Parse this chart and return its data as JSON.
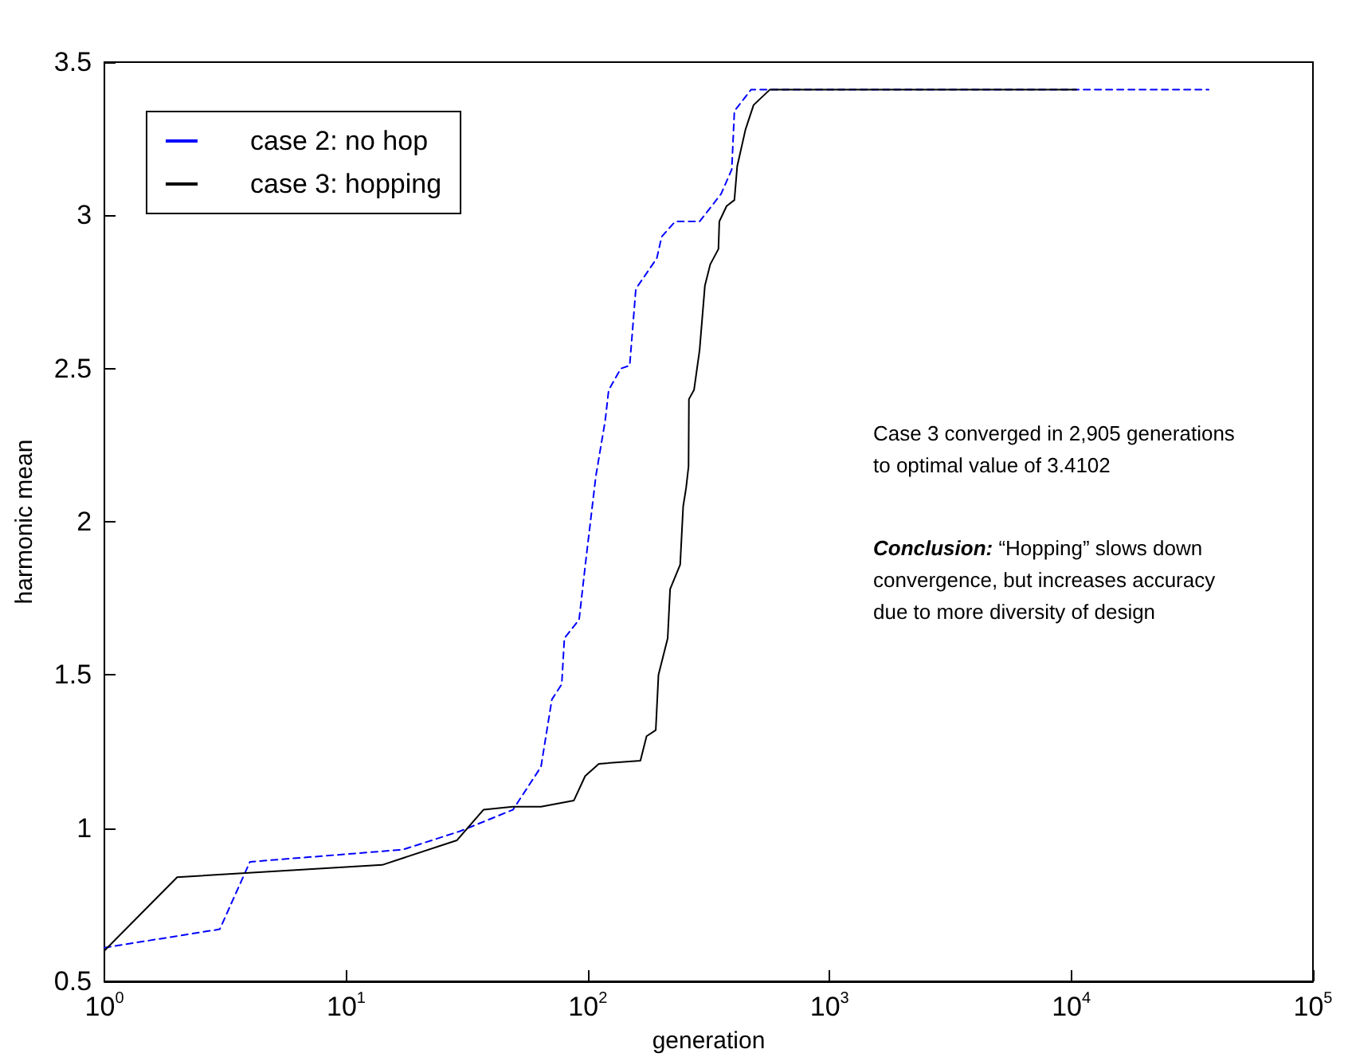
{
  "chart_data": {
    "type": "line",
    "xlabel": "generation",
    "ylabel": "harmonic mean",
    "log": "x",
    "xlim": [
      1,
      100000
    ],
    "xticks": [
      {
        "value": 1,
        "label": "10$^{0}$"
      },
      {
        "value": 10,
        "label": "10$^{1}$"
      },
      {
        "value": 100,
        "label": "10$^{2}$"
      },
      {
        "value": 1000,
        "label": "10$^{3}$"
      },
      {
        "value": 10000,
        "label": "10$^{4}$"
      },
      {
        "value": 100000,
        "label": "10$^{5}$"
      }
    ],
    "ylim": [
      0.5,
      3.5
    ],
    "yticks": [
      0.5,
      1,
      1.5,
      2,
      2.5,
      3,
      3.5
    ],
    "grid": false,
    "legend": "top left",
    "marker": "none",
    "series": [
      {
        "name": "case 2: no hop",
        "color": "#0000ff",
        "line_style": "dashed",
        "x": [
          1,
          3,
          4,
          17.2,
          29.6,
          49,
          64,
          71,
          78,
          80,
          92,
          98,
          108,
          118,
          122,
          137,
          149,
          158,
          193,
          202,
          230,
          290,
          356,
          394,
          404,
          473,
          37000
        ],
        "values": [
          0.61,
          0.67,
          0.89,
          0.93,
          0.99,
          1.06,
          1.2,
          1.42,
          1.47,
          1.62,
          1.68,
          1.87,
          2.15,
          2.33,
          2.43,
          2.5,
          2.51,
          2.76,
          2.86,
          2.93,
          2.98,
          2.98,
          3.07,
          3.15,
          3.34,
          3.41,
          3.41
        ]
      },
      {
        "name": "case 3: hopping",
        "color": "#000000",
        "line_style": "solid",
        "x": [
          1,
          2,
          14.1,
          28.7,
          37,
          49,
          64,
          87.5,
          97.5,
          111,
          165,
          175,
          191,
          196,
          214,
          219,
          241,
          248,
          255,
          261,
          262,
          275,
          290,
          305,
          321,
          347,
          350,
          375,
          404,
          415,
          449,
          485,
          566,
          10500
        ],
        "values": [
          0.6,
          0.84,
          0.88,
          0.96,
          1.06,
          1.07,
          1.07,
          1.09,
          1.17,
          1.21,
          1.22,
          1.3,
          1.32,
          1.5,
          1.62,
          1.78,
          1.86,
          2.05,
          2.11,
          2.18,
          2.4,
          2.43,
          2.56,
          2.77,
          2.84,
          2.89,
          2.98,
          3.03,
          3.05,
          3.16,
          3.28,
          3.36,
          3.41,
          3.41
        ]
      }
    ],
    "annotations": [
      "Case 3 converged in 2,905 generations to optimal value of 3.4102",
      "Conclusion: “Hopping” slows down convergence, but increases accuracy due to more diversity of design"
    ]
  }
}
